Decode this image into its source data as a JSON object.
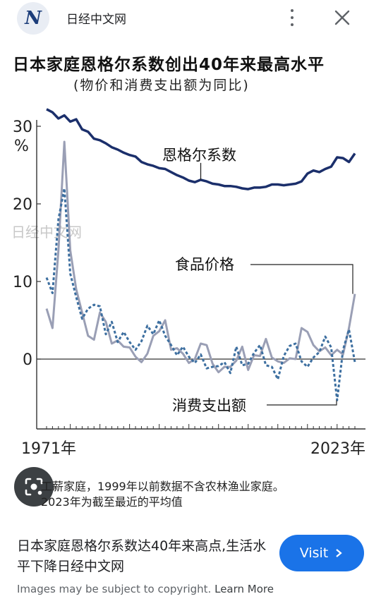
{
  "header": {
    "logo_letter": "N",
    "site_name": "日经中文网",
    "more_icon": "more-vert-icon",
    "close_icon": "close-icon"
  },
  "figure": {
    "title": "日本家庭恩格尔系数创出40年来最高水平",
    "subtitle": "(物价和消费支出额为同比)",
    "watermark": "日经中文网",
    "note_line1": "工薪家庭，1999年以前数据不含农林渔业家庭。",
    "note_line2": "2023年为截至最近的平均值"
  },
  "chart_data": {
    "type": "line",
    "xlabel": "",
    "ylabel": "%",
    "x_tick_labels": [
      "1971年",
      "2023年"
    ],
    "y_tick_labels": [
      "30",
      "20",
      "10",
      "0"
    ],
    "xlim": [
      1971,
      2023
    ],
    "ylim": [
      -9,
      32
    ],
    "colors": {
      "engel": "#1b2f6b",
      "food": "#9a9fb5",
      "spending": "#3d6fa0",
      "axis": "#333333"
    },
    "series": [
      {
        "name": "恩格尔系数",
        "style": "solid-thick",
        "x": [
          1971,
          1972,
          1973,
          1974,
          1975,
          1976,
          1977,
          1978,
          1979,
          1980,
          1981,
          1982,
          1983,
          1984,
          1985,
          1986,
          1987,
          1988,
          1989,
          1990,
          1991,
          1992,
          1993,
          1994,
          1995,
          1996,
          1997,
          1998,
          1999,
          2000,
          2001,
          2002,
          2003,
          2004,
          2005,
          2006,
          2007,
          2008,
          2009,
          2010,
          2011,
          2012,
          2013,
          2014,
          2015,
          2016,
          2017,
          2018,
          2019,
          2020,
          2021,
          2022,
          2023
        ],
        "y": [
          32.2,
          31.8,
          31.0,
          31.4,
          30.6,
          30.9,
          29.6,
          29.3,
          28.4,
          28.2,
          27.8,
          27.3,
          27.0,
          26.6,
          26.3,
          26.1,
          25.4,
          25.1,
          24.9,
          24.6,
          24.5,
          24.1,
          23.7,
          23.4,
          23.0,
          22.8,
          23.1,
          22.9,
          22.6,
          22.5,
          22.3,
          22.3,
          22.2,
          22.0,
          21.9,
          22.1,
          22.1,
          22.2,
          22.5,
          22.5,
          22.4,
          22.5,
          22.6,
          22.9,
          23.9,
          24.3,
          24.1,
          24.5,
          24.8,
          26.0,
          25.9,
          25.4,
          26.5
        ]
      },
      {
        "name": "食品价格",
        "style": "solid-thin",
        "x": [
          1971,
          1972,
          1973,
          1974,
          1975,
          1976,
          1977,
          1978,
          1979,
          1980,
          1981,
          1982,
          1983,
          1984,
          1985,
          1986,
          1987,
          1988,
          1989,
          1990,
          1991,
          1992,
          1993,
          1994,
          1995,
          1996,
          1997,
          1998,
          1999,
          2000,
          2001,
          2002,
          2003,
          2004,
          2005,
          2006,
          2007,
          2008,
          2009,
          2010,
          2011,
          2012,
          2013,
          2014,
          2015,
          2016,
          2017,
          2018,
          2019,
          2020,
          2021,
          2022,
          2023
        ],
        "y": [
          6.5,
          4.0,
          14.0,
          28.0,
          14.0,
          9.0,
          6.0,
          3.0,
          2.5,
          6.0,
          4.8,
          2.0,
          2.4,
          1.6,
          1.5,
          0.3,
          -0.4,
          0.7,
          3.0,
          3.6,
          5.0,
          1.2,
          1.4,
          0.7,
          -0.5,
          0.0,
          2.0,
          1.8,
          -0.6,
          -1.7,
          -1.0,
          -1.0,
          -0.2,
          1.6,
          -1.4,
          0.5,
          0.4,
          2.6,
          0.2,
          -0.3,
          -0.5,
          0.1,
          0.0,
          4.0,
          3.5,
          1.8,
          1.0,
          1.5,
          0.5,
          1.2,
          0.6,
          4.0,
          8.4
        ]
      },
      {
        "name": "消费支出额",
        "style": "dashed",
        "x": [
          1971,
          1972,
          1973,
          1974,
          1975,
          1976,
          1977,
          1978,
          1979,
          1980,
          1981,
          1982,
          1983,
          1984,
          1985,
          1986,
          1987,
          1988,
          1989,
          1990,
          1991,
          1992,
          1993,
          1994,
          1995,
          1996,
          1997,
          1998,
          1999,
          2000,
          2001,
          2002,
          2003,
          2004,
          2005,
          2006,
          2007,
          2008,
          2009,
          2010,
          2011,
          2012,
          2013,
          2014,
          2015,
          2016,
          2017,
          2018,
          2019,
          2020,
          2021,
          2022,
          2023
        ],
        "y": [
          10.5,
          8.5,
          18.0,
          22.0,
          11.0,
          8.0,
          5.2,
          6.5,
          7.0,
          6.8,
          3.2,
          4.8,
          2.2,
          3.5,
          2.2,
          1.2,
          2.3,
          4.3,
          3.2,
          5.0,
          3.0,
          1.8,
          0.5,
          1.6,
          0.3,
          -0.5,
          0.6,
          -1.2,
          -1.0,
          -0.9,
          -0.4,
          -1.8,
          1.6,
          -0.8,
          -0.6,
          0.8,
          1.8,
          -0.8,
          -1.0,
          -2.6,
          0.4,
          1.7,
          2.0,
          -0.3,
          -1.0,
          0.2,
          0.9,
          2.9,
          1.5,
          -5.3,
          1.2,
          3.8,
          -0.4
        ]
      }
    ]
  },
  "lens_icon": "google-lens-icon",
  "result": {
    "caption": "日本家庭恩格尔系数达40年来高点,生活水平下降日经中文网",
    "visit_label": "Visit",
    "visit_icon": "chevron-right-icon",
    "copyright_text": "Images may be subject to copyright.",
    "learn_more": "Learn More"
  }
}
